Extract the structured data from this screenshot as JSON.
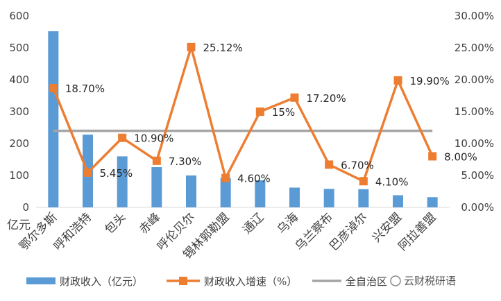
{
  "chart_data": {
    "type": "bar+line",
    "categories": [
      "鄂尔多斯",
      "呼和浩特",
      "包头",
      "赤峰",
      "呼伦贝尔",
      "锡林郭勒盟",
      "通辽",
      "乌海",
      "乌兰察布",
      "巴彦淖尔",
      "兴安盟",
      "阿拉善盟"
    ],
    "series": [
      {
        "name": "财政收入（亿元）",
        "type": "bar",
        "axis": "left",
        "color": "#5B9BD5",
        "values": [
          552,
          228,
          160,
          126,
          100,
          92,
          85,
          62,
          58,
          57,
          38,
          32
        ]
      },
      {
        "name": "财政收入增速（%）",
        "type": "line",
        "axis": "right",
        "color": "#ED7D31",
        "values": [
          18.7,
          5.45,
          10.9,
          7.3,
          25.12,
          4.6,
          15,
          17.2,
          6.7,
          4.1,
          19.9,
          8.0
        ],
        "labels": [
          "18.70%",
          "5.45%",
          "10.90%",
          "7.30%",
          "25.12%",
          "4.60%",
          "15%",
          "17.20%",
          "6.70%",
          "4.10%",
          "19.90%",
          "8.00%"
        ]
      },
      {
        "name": "全自治区",
        "type": "line",
        "axis": "right",
        "color": "#A5A5A5",
        "values": [
          12,
          12,
          12,
          12,
          12,
          12,
          12,
          12,
          12,
          12,
          12,
          12
        ]
      }
    ],
    "y_left": {
      "min": 0,
      "max": 600,
      "ticks": [
        "0",
        "100",
        "200",
        "300",
        "400",
        "500",
        "600"
      ],
      "unit_label": "亿元"
    },
    "y_right": {
      "min": 0,
      "max": 30,
      "ticks": [
        "0.00%",
        "5.00%",
        "10.00%",
        "15.00%",
        "20.00%",
        "25.00%",
        "30.00%"
      ]
    },
    "grid": false,
    "legend_position": "bottom"
  },
  "watermark": "云财税研语"
}
